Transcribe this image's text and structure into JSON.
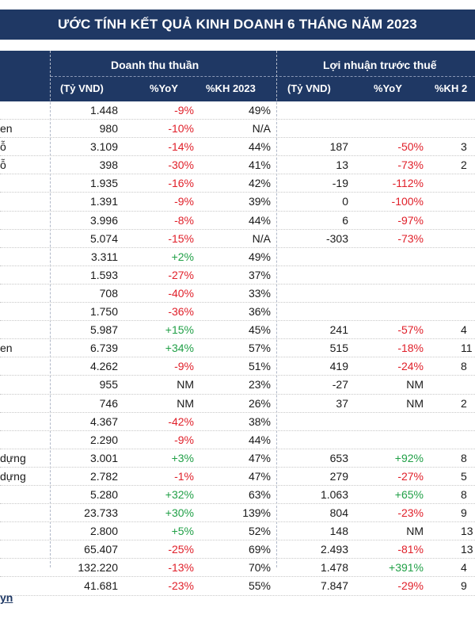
{
  "title": "ƯỚC TÍNH KẾT QUẢ KINH DOANH 6 THÁNG NĂM 2023",
  "headers": {
    "revenue_group": "Doanh thu thuần",
    "pbt_group": "Lợi nhuận trước thuế",
    "rev_unit": "(Tỷ VND)",
    "rev_yoy": "%YoY",
    "rev_kh": "%KH 2023",
    "pbt_unit": "(Tỷ VND)",
    "pbt_yoy": "%YoY",
    "pbt_kh": "%KH 2"
  },
  "rows": [
    {
      "name": "",
      "rev": "1.448",
      "ryoy": "-9%",
      "rkh": "49%",
      "pbt": "",
      "pyoy": "",
      "pkh": ""
    },
    {
      "name": "en",
      "rev": "980",
      "ryoy": "-10%",
      "rkh": "N/A",
      "pbt": "",
      "pyoy": "",
      "pkh": ""
    },
    {
      "name": "ỗ",
      "rev": "3.109",
      "ryoy": "-14%",
      "rkh": "44%",
      "pbt": "187",
      "pyoy": "-50%",
      "pkh": "3"
    },
    {
      "name": "ỗ",
      "rev": "398",
      "ryoy": "-30%",
      "rkh": "41%",
      "pbt": "13",
      "pyoy": "-73%",
      "pkh": "2"
    },
    {
      "name": "",
      "rev": "1.935",
      "ryoy": "-16%",
      "rkh": "42%",
      "pbt": "-19",
      "pyoy": "-112%",
      "pkh": ""
    },
    {
      "name": "",
      "rev": "1.391",
      "ryoy": "-9%",
      "rkh": "39%",
      "pbt": "0",
      "pyoy": "-100%",
      "pkh": ""
    },
    {
      "name": "",
      "rev": "3.996",
      "ryoy": "-8%",
      "rkh": "44%",
      "pbt": "6",
      "pyoy": "-97%",
      "pkh": ""
    },
    {
      "name": "",
      "rev": "5.074",
      "ryoy": "-15%",
      "rkh": "N/A",
      "pbt": "-303",
      "pyoy": "-73%",
      "pkh": ""
    },
    {
      "name": "",
      "rev": "3.311",
      "ryoy": "+2%",
      "rkh": "49%",
      "pbt": "",
      "pyoy": "",
      "pkh": ""
    },
    {
      "name": "",
      "rev": "1.593",
      "ryoy": "-27%",
      "rkh": "37%",
      "pbt": "",
      "pyoy": "",
      "pkh": ""
    },
    {
      "name": "",
      "rev": "708",
      "ryoy": "-40%",
      "rkh": "33%",
      "pbt": "",
      "pyoy": "",
      "pkh": ""
    },
    {
      "name": "",
      "rev": "1.750",
      "ryoy": "-36%",
      "rkh": "36%",
      "pbt": "",
      "pyoy": "",
      "pkh": ""
    },
    {
      "name": "",
      "rev": "5.987",
      "ryoy": "+15%",
      "rkh": "45%",
      "pbt": "241",
      "pyoy": "-57%",
      "pkh": "4"
    },
    {
      "name": "en",
      "rev": "6.739",
      "ryoy": "+34%",
      "rkh": "57%",
      "pbt": "515",
      "pyoy": "-18%",
      "pkh": "11"
    },
    {
      "name": "",
      "rev": "4.262",
      "ryoy": "-9%",
      "rkh": "51%",
      "pbt": "419",
      "pyoy": "-24%",
      "pkh": "8"
    },
    {
      "name": "",
      "rev": "955",
      "ryoy": "NM",
      "rkh": "23%",
      "pbt": "-27",
      "pyoy": "NM",
      "pkh": ""
    },
    {
      "name": "",
      "rev": "746",
      "ryoy": "NM",
      "rkh": "26%",
      "pbt": "37",
      "pyoy": "NM",
      "pkh": "2"
    },
    {
      "name": "",
      "rev": "4.367",
      "ryoy": "-42%",
      "rkh": "38%",
      "pbt": "",
      "pyoy": "",
      "pkh": ""
    },
    {
      "name": "",
      "rev": "2.290",
      "ryoy": "-9%",
      "rkh": "44%",
      "pbt": "",
      "pyoy": "",
      "pkh": ""
    },
    {
      "name": "dựng",
      "rev": "3.001",
      "ryoy": "+3%",
      "rkh": "47%",
      "pbt": "653",
      "pyoy": "+92%",
      "pkh": "8"
    },
    {
      "name": "dựng",
      "rev": "2.782",
      "ryoy": "-1%",
      "rkh": "47%",
      "pbt": "279",
      "pyoy": "-27%",
      "pkh": "5"
    },
    {
      "name": "",
      "rev": "5.280",
      "ryoy": "+32%",
      "rkh": "63%",
      "pbt": "1.063",
      "pyoy": "+65%",
      "pkh": "8"
    },
    {
      "name": "",
      "rev": "23.733",
      "ryoy": "+30%",
      "rkh": "139%",
      "pbt": "804",
      "pyoy": "-23%",
      "pkh": "9"
    },
    {
      "name": "",
      "rev": "2.800",
      "ryoy": "+5%",
      "rkh": "52%",
      "pbt": "148",
      "pyoy": "NM",
      "pkh": "13"
    },
    {
      "name": "",
      "rev": "65.407",
      "ryoy": "-25%",
      "rkh": "69%",
      "pbt": "2.493",
      "pyoy": "-81%",
      "pkh": "13"
    },
    {
      "name": "",
      "rev": "132.220",
      "ryoy": "-13%",
      "rkh": "70%",
      "pbt": "1.478",
      "pyoy": "+391%",
      "pkh": "4"
    },
    {
      "name": "",
      "rev": "41.681",
      "ryoy": "-23%",
      "rkh": "55%",
      "pbt": "7.847",
      "pyoy": "-29%",
      "pkh": "9"
    }
  ],
  "footer_link": "yn"
}
